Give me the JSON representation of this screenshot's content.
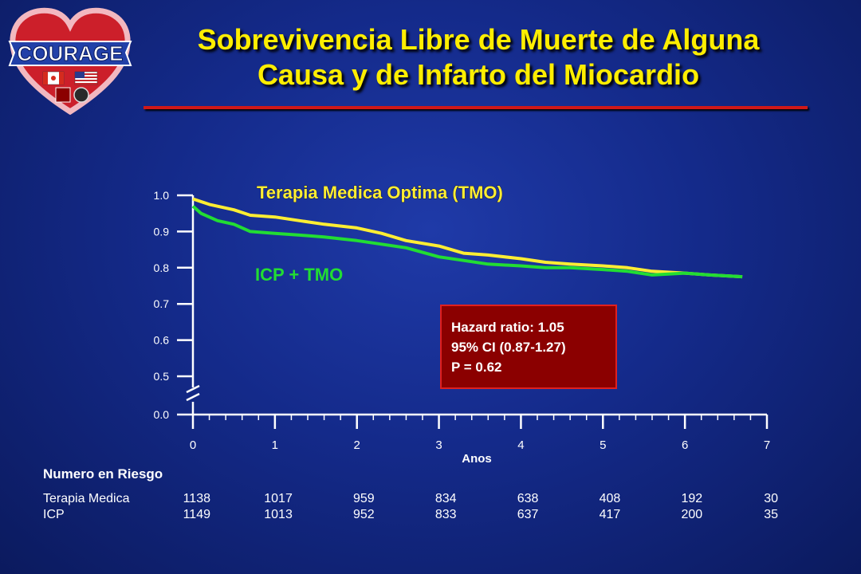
{
  "logo": {
    "text": "COURAGE",
    "icon": "heart-flags-logo"
  },
  "title": {
    "line1": "Sobrevivencia Libre de Muerte de Alguna",
    "line2": "Causa y de Infarto del Miocardio"
  },
  "colors": {
    "title": "#ffee00",
    "rule": "#d01818",
    "tmo": "#ffee33",
    "icp": "#22dd33",
    "box_bg": "#8b0000",
    "box_border": "#e02020"
  },
  "chart_data": {
    "type": "line",
    "xlabel": "Anos",
    "ylabel": "",
    "xlim": [
      0,
      7
    ],
    "ylim_display": [
      0.5,
      1.0
    ],
    "y_axis_break": true,
    "x_ticks": [
      "0",
      "1",
      "2",
      "3",
      "4",
      "5",
      "6",
      "7"
    ],
    "y_ticks": [
      "1.0",
      "0.9",
      "0.8",
      "0.7",
      "0.6",
      "0.5",
      "0.0"
    ],
    "grid": false,
    "series": [
      {
        "name": "Terapia Medica Optima (TMO)",
        "color": "#ffee33",
        "x": [
          0,
          0.2,
          0.5,
          0.7,
          1.0,
          1.3,
          1.6,
          2.0,
          2.3,
          2.6,
          3.0,
          3.3,
          3.6,
          4.0,
          4.3,
          4.6,
          5.0,
          5.3,
          5.6,
          6.0,
          6.3,
          6.7
        ],
        "y": [
          0.99,
          0.975,
          0.96,
          0.945,
          0.94,
          0.93,
          0.92,
          0.91,
          0.895,
          0.875,
          0.86,
          0.84,
          0.835,
          0.825,
          0.815,
          0.81,
          0.805,
          0.8,
          0.79,
          0.785,
          0.78,
          0.775
        ]
      },
      {
        "name": "ICP + TMO",
        "color": "#22dd33",
        "x": [
          0,
          0.1,
          0.3,
          0.5,
          0.7,
          1.0,
          1.3,
          1.6,
          2.0,
          2.3,
          2.6,
          3.0,
          3.3,
          3.6,
          4.0,
          4.3,
          4.6,
          5.0,
          5.3,
          5.6,
          6.0,
          6.3,
          6.7
        ],
        "y": [
          0.97,
          0.95,
          0.93,
          0.92,
          0.9,
          0.895,
          0.89,
          0.885,
          0.875,
          0.865,
          0.855,
          0.83,
          0.82,
          0.81,
          0.805,
          0.8,
          0.8,
          0.795,
          0.79,
          0.78,
          0.785,
          0.78,
          0.775
        ]
      }
    ],
    "annotations": [
      "Hazard ratio: 1.05",
      "95% CI (0.87-1.27)",
      "P = 0.62"
    ]
  },
  "risk_table": {
    "title": "Numero en Riesgo",
    "rows": [
      {
        "label": "Terapia Medica",
        "values": [
          "1138",
          "1017",
          "959",
          "834",
          "638",
          "408",
          "192",
          "30"
        ]
      },
      {
        "label": "ICP",
        "values": [
          "1149",
          "1013",
          "952",
          "833",
          "637",
          "417",
          "200",
          "35"
        ]
      }
    ]
  }
}
